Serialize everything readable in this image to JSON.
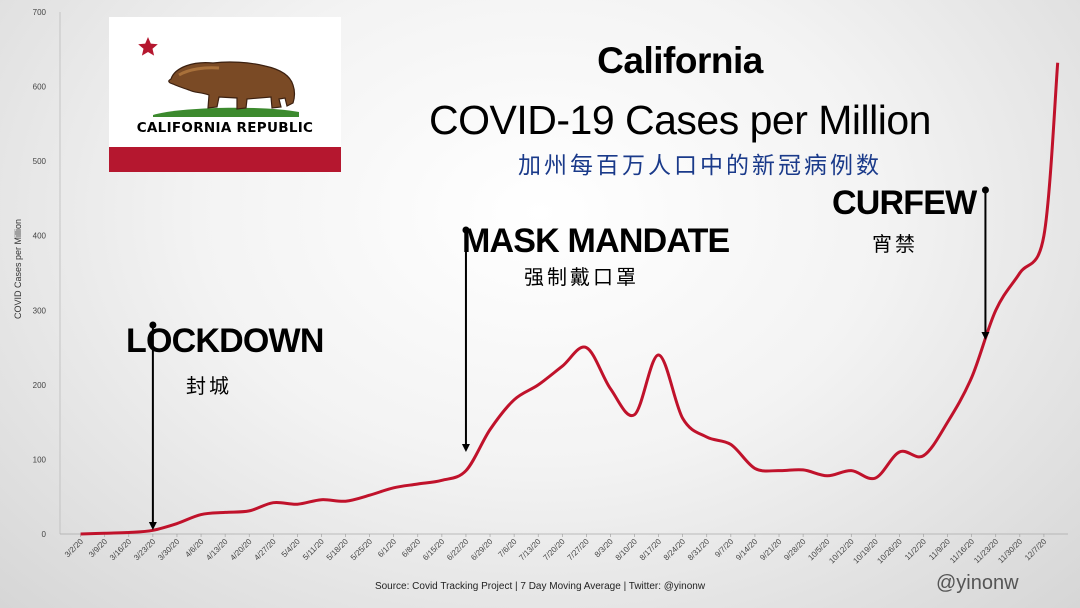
{
  "chart_data": {
    "type": "line",
    "title": "California",
    "subtitle": "COVID-19 Cases per Million",
    "subtitle_cn": "加州每百万人口中的新冠病例数",
    "ylabel": "COVID Cases per Million",
    "xlabel": "",
    "ylim": [
      0,
      700
    ],
    "yticks": [
      0,
      100,
      200,
      300,
      400,
      500,
      600,
      700
    ],
    "grid": false,
    "legend": "none",
    "series_color": "#c0122b",
    "x_tick_labels": [
      "3/2/20",
      "3/9/20",
      "3/16/20",
      "3/23/20",
      "3/30/20",
      "4/6/20",
      "4/13/20",
      "4/20/20",
      "4/27/20",
      "5/4/20",
      "5/11/20",
      "5/18/20",
      "5/25/20",
      "6/1/20",
      "6/8/20",
      "6/15/20",
      "6/22/20",
      "6/29/20",
      "7/6/20",
      "7/13/20",
      "7/20/20",
      "7/27/20",
      "8/3/20",
      "8/10/20",
      "8/17/20",
      "8/24/20",
      "8/31/20",
      "9/7/20",
      "9/14/20",
      "9/21/20",
      "9/28/20",
      "10/5/20",
      "10/12/20",
      "10/19/20",
      "10/26/20",
      "11/2/20",
      "11/9/20",
      "11/16/20",
      "11/23/20",
      "11/30/20",
      "12/7/20"
    ],
    "series": [
      {
        "x": [
          "3/2/20",
          "3/9/20",
          "3/16/20",
          "3/23/20",
          "3/30/20",
          "4/6/20",
          "4/13/20",
          "4/20/20",
          "4/27/20",
          "5/4/20",
          "5/11/20",
          "5/18/20",
          "5/25/20",
          "6/1/20",
          "6/8/20",
          "6/15/20",
          "6/22/20",
          "6/29/20",
          "7/6/20",
          "7/13/20",
          "7/20/20",
          "7/27/20",
          "8/3/20",
          "8/10/20",
          "8/17/20",
          "8/24/20",
          "8/31/20",
          "9/7/20",
          "9/14/20",
          "9/21/20",
          "9/28/20",
          "10/5/20",
          "10/12/20",
          "10/19/20",
          "10/26/20",
          "11/2/20",
          "11/9/20",
          "11/16/20",
          "11/23/20",
          "11/30/20",
          "12/7/20",
          "12/11/20"
        ],
        "values": [
          0,
          1,
          2,
          5,
          14,
          26,
          29,
          31,
          42,
          40,
          46,
          44,
          52,
          62,
          67,
          72,
          85,
          140,
          180,
          200,
          225,
          250,
          195,
          160,
          240,
          155,
          130,
          120,
          88,
          85,
          86,
          78,
          85,
          75,
          110,
          105,
          150,
          210,
          300,
          350,
          400,
          632
        ]
      }
    ]
  },
  "annotations": [
    {
      "label": "LOCKDOWN",
      "label_cn": "封城",
      "date": "3/23/20"
    },
    {
      "label": "MASK MANDATE",
      "label_cn": "强制戴口罩",
      "date": "6/22/20"
    },
    {
      "label": "CURFEW",
      "label_cn": "宵禁",
      "date": "11/20/20"
    }
  ],
  "flag": {
    "text": "CALIFORNIA REPUBLIC",
    "icon": "california-bear-flag"
  },
  "source": "Source: Covid Tracking Project | 7 Day Moving Average | Twitter: @yinonw",
  "handle": "@yinonw"
}
